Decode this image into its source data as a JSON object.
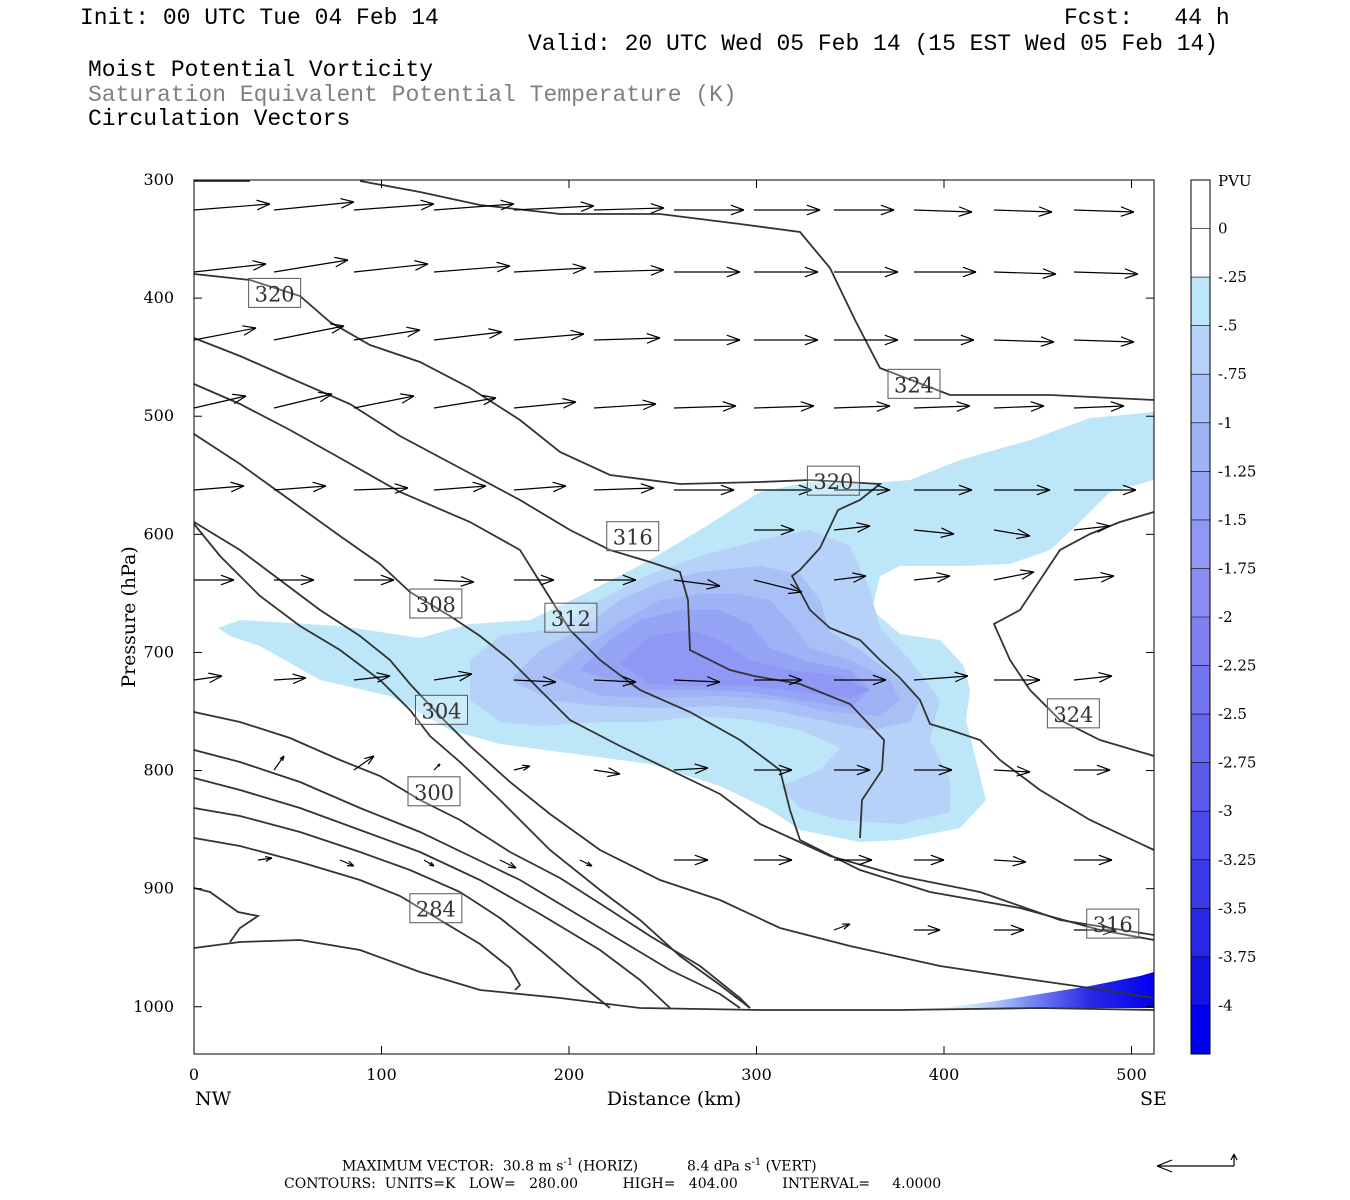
{
  "header": {
    "init": "Init: 00 UTC Tue 04 Feb 14",
    "fcst": "Fcst:   44 h",
    "valid": "Valid: 20 UTC Wed 05 Feb 14 (15 EST Wed 05 Feb 14)",
    "fields": [
      "Moist Potential Vorticity",
      "Saturation Equivalent Potential Temperature (K)",
      "Circulation Vectors"
    ]
  },
  "footer": {
    "max_label": "MAXIMUM VECTOR:",
    "horiz_val": "30.8 m s",
    "horiz_unit": "(HORIZ)",
    "vert_val": "8.4 dPa s",
    "vert_unit": "(VERT)",
    "exp": "-1",
    "contours": "CONTOURS:  UNITS=K   LOW=   280.00          HIGH=   404.00          INTERVAL=     4.0000"
  },
  "colors": {
    "pv_0": "#ffffff",
    "pv_025": "#bde6f8",
    "pv_05": "#b6d2f8",
    "pv_075": "#a8c0f6",
    "pv_1": "#9fb2f6",
    "pv_125": "#96a4f5",
    "pv_15": "#8f98f4",
    "pv_4": "#0000f0"
  },
  "chart_data": {
    "type": "cross-section",
    "xlabel": "Distance (km)",
    "ylabel": "Pressure (hPa)",
    "x_ticks": [
      0,
      100,
      200,
      300,
      400,
      500
    ],
    "y_ticks": [
      300,
      400,
      500,
      600,
      700,
      800,
      900,
      1000
    ],
    "xlim": [
      0,
      512
    ],
    "ylim": [
      1040,
      300
    ],
    "x_left_label": "NW",
    "x_right_label": "SE",
    "colorbar": {
      "unit": "PVU",
      "labels": [
        "0",
        "-.25",
        "-.5",
        "-.75",
        "-1",
        "-1.25",
        "-1.5",
        "-1.75",
        "-2",
        "-2.25",
        "-2.5",
        "-2.75",
        "-3",
        "-3.25",
        "-3.5",
        "-3.75",
        "-4"
      ],
      "colors": [
        "#ffffff",
        "#ffffff",
        "#bde6f8",
        "#b6d2f8",
        "#a8c0f6",
        "#9fb2f6",
        "#96a4f5",
        "#8f98f4",
        "#8a8cf2",
        "#8080f0",
        "#7474ee",
        "#6868ec",
        "#5a5aea",
        "#4a4ae8",
        "#3a3ae6",
        "#2828e4",
        "#1414e2",
        "#0000f0"
      ]
    },
    "contour_labels": [
      {
        "text": "320",
        "x": 43,
        "y": 396
      },
      {
        "text": "324",
        "x": 384,
        "y": 473
      },
      {
        "text": "320",
        "x": 341,
        "y": 555
      },
      {
        "text": "316",
        "x": 234,
        "y": 602
      },
      {
        "text": "308",
        "x": 129,
        "y": 659
      },
      {
        "text": "312",
        "x": 201,
        "y": 671
      },
      {
        "text": "304",
        "x": 132,
        "y": 749
      },
      {
        "text": "324",
        "x": 469,
        "y": 752
      },
      {
        "text": "300",
        "x": 128,
        "y": 818
      },
      {
        "text": "284",
        "x": 129,
        "y": 917
      },
      {
        "text": "316",
        "x": 490,
        "y": 930
      }
    ]
  }
}
